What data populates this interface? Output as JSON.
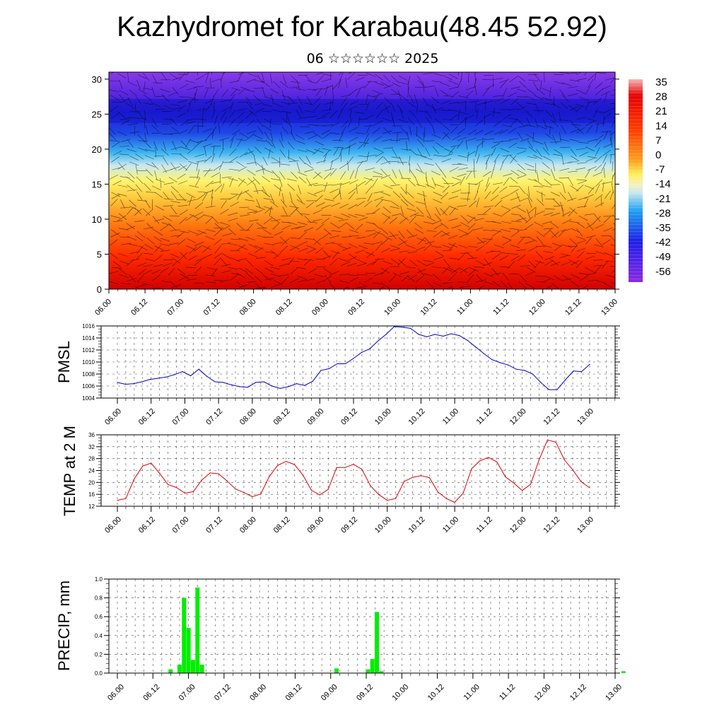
{
  "header": {
    "title": "Kazhydromet for Karabau(48.45 52.92)",
    "subtitle": "06 ☆☆☆☆☆☆ 2025"
  },
  "chart_data": [
    {
      "type": "heatmap",
      "name": "cross-section",
      "x_tick_labels": [
        "06.00",
        "06.12",
        "07.00",
        "07.12",
        "08.00",
        "08.12",
        "09.00",
        "09.12",
        "10.00",
        "10.12",
        "11.00",
        "11.12",
        "12.00",
        "12.12",
        "13.00"
      ],
      "y_ticks": [
        0,
        5,
        10,
        15,
        20,
        25,
        30
      ],
      "ylim": [
        0,
        31
      ],
      "colorbar_labels": [
        "35",
        "28",
        "21",
        "14",
        "7",
        "0",
        "-7",
        "-14",
        "-21",
        "-28",
        "-35",
        "-42",
        "-49",
        "-56"
      ],
      "colors": [
        "#8a2be2",
        "#1e1ee6",
        "#1ea0f0",
        "#c8e8f0",
        "#fff05a",
        "#ffa01e",
        "#ff3c00",
        "#d20000",
        "#f0a0a0"
      ]
    },
    {
      "type": "line",
      "name": "pmsl",
      "ylabel": "PMSL",
      "ylim": [
        1004,
        1016
      ],
      "y_ticks": [
        1004,
        1006,
        1008,
        1010,
        1012,
        1014,
        1016
      ],
      "x_tick_labels": [
        "06.00",
        "06.12",
        "07.00",
        "07.12",
        "08.00",
        "08.12",
        "09.00",
        "09.12",
        "10.00",
        "10.12",
        "11.00",
        "11.12",
        "12.00",
        "12.12",
        "13.00"
      ],
      "color": "#0000cc",
      "values": [
        1006.6,
        1006.3,
        1006.4,
        1006.7,
        1007.1,
        1007.3,
        1007.5,
        1007.9,
        1008.4,
        1007.7,
        1008.8,
        1007.6,
        1006.7,
        1006.6,
        1006.2,
        1005.9,
        1005.8,
        1006.6,
        1006.7,
        1006.0,
        1005.6,
        1005.9,
        1006.4,
        1006.1,
        1006.8,
        1008.6,
        1008.9,
        1009.7,
        1009.7,
        1010.6,
        1011.6,
        1012.2,
        1013.5,
        1014.6,
        1015.9,
        1015.8,
        1015.6,
        1014.6,
        1014.2,
        1014.6,
        1014.3,
        1014.7,
        1014.4,
        1013.6,
        1012.5,
        1011.4,
        1010.4,
        1009.9,
        1009.5,
        1008.8,
        1008.6,
        1008.0,
        1006.6,
        1005.4,
        1005.4,
        1007.0,
        1008.5,
        1008.4,
        1009.6
      ]
    },
    {
      "type": "line",
      "name": "temp",
      "ylabel": "TEMP at 2 M",
      "ylim": [
        12,
        36
      ],
      "y_ticks": [
        12,
        16,
        20,
        24,
        28,
        32,
        36
      ],
      "x_tick_labels": [
        "06.00",
        "06.12",
        "07.00",
        "07.12",
        "08.00",
        "08.12",
        "09.00",
        "09.12",
        "10.00",
        "10.12",
        "11.00",
        "11.12",
        "12.00",
        "12.12",
        "13.00"
      ],
      "color": "#dd0000",
      "values": [
        14.0,
        14.6,
        21.2,
        25.5,
        26.5,
        23.1,
        19.3,
        18.3,
        16.4,
        16.9,
        20.8,
        23.2,
        22.9,
        20.5,
        17.8,
        16.6,
        15.2,
        16.1,
        21.9,
        25.7,
        27.1,
        26.0,
        22.5,
        17.4,
        15.8,
        17.7,
        25.0,
        25.0,
        26.1,
        24.4,
        18.9,
        15.9,
        14.0,
        14.6,
        20.3,
        21.7,
        22.3,
        21.6,
        16.8,
        14.6,
        13.3,
        16.4,
        24.6,
        27.3,
        28.4,
        26.9,
        21.9,
        19.8,
        17.3,
        19.4,
        27.6,
        34.3,
        33.5,
        27.6,
        24.2,
        20.2,
        18.2
      ]
    },
    {
      "type": "bar",
      "name": "precip",
      "ylabel": "PRECIP, mm",
      "ylim": [
        0,
        1.0
      ],
      "y_ticks": [
        "0.0",
        "0.2",
        "0.4",
        "0.6",
        "0.8",
        "1.0"
      ],
      "x_tick_labels": [
        "06.00",
        "06.12",
        "07.00",
        "07.12",
        "08.00",
        "08.12",
        "09.00",
        "09.12",
        "10.00",
        "10.12",
        "11.00",
        "11.12",
        "12.00",
        "12.12",
        "13.00"
      ],
      "color": "#00ee00",
      "values": [
        0,
        0,
        0,
        0,
        0,
        0,
        0,
        0,
        0,
        0,
        0.04,
        0,
        0.09,
        0.8,
        0.48,
        0.14,
        0.91,
        0.09,
        0,
        0,
        0,
        0,
        0,
        0,
        0,
        0,
        0,
        0,
        0,
        0,
        0,
        0,
        0,
        0,
        0,
        0,
        0,
        0,
        0,
        0,
        0,
        0,
        0,
        0,
        0,
        0,
        0,
        0.05,
        0,
        0,
        0,
        0,
        0,
        0,
        0.04,
        0.15,
        0.65,
        0.02,
        0,
        0,
        0,
        0,
        0,
        0,
        0,
        0,
        0,
        0,
        0,
        0,
        0,
        0,
        0,
        0,
        0,
        0,
        0,
        0,
        0,
        0,
        0,
        0,
        0,
        0,
        0,
        0,
        0,
        0,
        0,
        0,
        0,
        0,
        0,
        0,
        0,
        0,
        0,
        0,
        0,
        0,
        0,
        0,
        0,
        0,
        0,
        0,
        0,
        0,
        0,
        0,
        0,
        0.02
      ]
    }
  ]
}
